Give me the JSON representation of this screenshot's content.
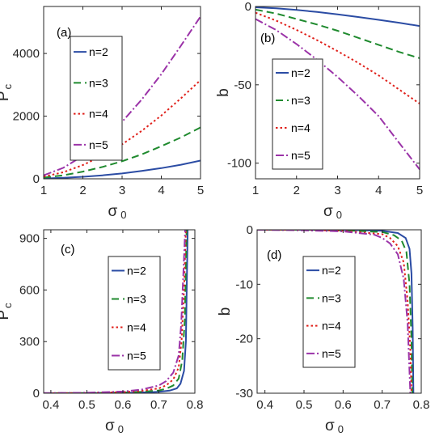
{
  "colors": {
    "n2": "#2b4ca4",
    "n3": "#1f8a2e",
    "n4": "#e0211b",
    "n5": "#9b33a8"
  },
  "chart_data": [
    {
      "panel": "(a)",
      "type": "line",
      "xlabel": "σ",
      "xlabel_sub": "0",
      "ylabel": "P",
      "ylabel_sub": "c",
      "xlim": [
        1,
        5
      ],
      "ylim": [
        0,
        5500
      ],
      "xticks": [
        "1",
        "2",
        "3",
        "4",
        "5"
      ],
      "yticks": [
        "0",
        "2000",
        "4000"
      ],
      "legend": "center-left",
      "series": [
        {
          "name": "n=2",
          "x": [
            1,
            1.5,
            2,
            2.5,
            3,
            3.5,
            4,
            4.5,
            5
          ],
          "values": [
            10,
            30,
            65,
            110,
            170,
            250,
            340,
            450,
            580
          ]
        },
        {
          "name": "n=3",
          "x": [
            1,
            1.5,
            2,
            2.5,
            3,
            3.5,
            4,
            4.5,
            5
          ],
          "values": [
            40,
            110,
            230,
            380,
            560,
            780,
            1040,
            1320,
            1640
          ]
        },
        {
          "name": "n=4",
          "x": [
            1,
            1.5,
            2,
            2.5,
            3,
            3.5,
            4,
            4.5,
            5
          ],
          "values": [
            70,
            210,
            440,
            740,
            1100,
            1530,
            2020,
            2570,
            3150
          ]
        },
        {
          "name": "n=5",
          "x": [
            1,
            1.5,
            2,
            2.5,
            3,
            3.5,
            4,
            4.5,
            5
          ],
          "values": [
            110,
            350,
            730,
            1220,
            1820,
            2530,
            3340,
            4250,
            5180
          ]
        }
      ]
    },
    {
      "panel": "(b)",
      "type": "line",
      "xlabel": "σ",
      "xlabel_sub": "0",
      "ylabel": "b",
      "xlim": [
        1,
        5
      ],
      "ylim": [
        -110,
        0
      ],
      "xticks": [
        "1",
        "2",
        "3",
        "4",
        "5"
      ],
      "yticks": [
        "0",
        "-50",
        "-100"
      ],
      "legend": "center-left",
      "series": [
        {
          "name": "n=2",
          "x": [
            1,
            1.5,
            2,
            2.5,
            3,
            3.5,
            4,
            4.5,
            5
          ],
          "values": [
            -0.5,
            -1.2,
            -2.2,
            -3.5,
            -5,
            -6.7,
            -8.5,
            -10.4,
            -12.5
          ]
        },
        {
          "name": "n=3",
          "x": [
            1,
            1.5,
            2,
            2.5,
            3,
            3.5,
            4,
            4.5,
            5
          ],
          "values": [
            -2,
            -4.5,
            -8,
            -11.5,
            -15.5,
            -20,
            -24.5,
            -29,
            -33
          ]
        },
        {
          "name": "n=4",
          "x": [
            1,
            1.5,
            2,
            2.5,
            3,
            3.5,
            4,
            4.5,
            5
          ],
          "values": [
            -4,
            -9,
            -15,
            -21.5,
            -28.5,
            -36,
            -44,
            -53,
            -62
          ]
        },
        {
          "name": "n=5",
          "x": [
            1,
            1.5,
            2,
            2.5,
            3,
            3.5,
            4,
            4.5,
            5
          ],
          "values": [
            -8,
            -15,
            -24,
            -34,
            -45,
            -57,
            -70,
            -87,
            -104
          ]
        }
      ]
    },
    {
      "panel": "(c)",
      "type": "line",
      "xlabel": "σ",
      "xlabel_sub": "0",
      "ylabel": "P",
      "ylabel_sub": "c",
      "xlim": [
        0.38,
        0.8
      ],
      "ylim": [
        0,
        950
      ],
      "xticks": [
        "0.4",
        "0.5",
        "0.6",
        "0.7",
        "0.8"
      ],
      "yticks": [
        "0",
        "300",
        "600",
        "900"
      ],
      "legend": "center",
      "series": [
        {
          "name": "n=2",
          "x": [
            0.38,
            0.5,
            0.6,
            0.65,
            0.7,
            0.73,
            0.75,
            0.76,
            0.77,
            0.775,
            0.78
          ],
          "values": [
            0,
            0.5,
            2,
            4,
            8,
            15,
            28,
            55,
            130,
            300,
            950
          ]
        },
        {
          "name": "n=3",
          "x": [
            0.38,
            0.5,
            0.6,
            0.65,
            0.7,
            0.72,
            0.74,
            0.755,
            0.765,
            0.772,
            0.777
          ],
          "values": [
            0,
            1,
            4,
            8,
            16,
            26,
            45,
            85,
            190,
            420,
            950
          ]
        },
        {
          "name": "n=4",
          "x": [
            0.38,
            0.5,
            0.6,
            0.65,
            0.7,
            0.72,
            0.74,
            0.755,
            0.763,
            0.77,
            0.775
          ],
          "values": [
            0,
            1.5,
            6,
            13,
            28,
            45,
            80,
            150,
            300,
            600,
            950
          ]
        },
        {
          "name": "n=5",
          "x": [
            0.38,
            0.5,
            0.6,
            0.65,
            0.7,
            0.72,
            0.74,
            0.755,
            0.762,
            0.768,
            0.773
          ],
          "values": [
            1,
            3,
            10,
            20,
            45,
            70,
            120,
            220,
            400,
            700,
            950
          ]
        }
      ]
    },
    {
      "panel": "(d)",
      "type": "line",
      "xlabel": "σ",
      "xlabel_sub": "0",
      "ylabel": "b",
      "xlim": [
        0.38,
        0.8
      ],
      "ylim": [
        -30,
        0
      ],
      "xticks": [
        "0.4",
        "0.5",
        "0.6",
        "0.7",
        "0.8"
      ],
      "yticks": [
        "0",
        "-10",
        "-20",
        "-30"
      ],
      "legend": "center",
      "series": [
        {
          "name": "n=2",
          "x": [
            0.38,
            0.5,
            0.6,
            0.7,
            0.74,
            0.76,
            0.77,
            0.775,
            0.778,
            0.78
          ],
          "values": [
            0,
            0,
            0,
            -0.2,
            -0.6,
            -1.5,
            -3.5,
            -8,
            -18,
            -30
          ]
        },
        {
          "name": "n=3",
          "x": [
            0.38,
            0.5,
            0.6,
            0.7,
            0.73,
            0.75,
            0.762,
            0.77,
            0.775,
            0.777
          ],
          "values": [
            0,
            0,
            -0.1,
            -0.4,
            -1,
            -2,
            -4,
            -10,
            -20,
            -30
          ]
        },
        {
          "name": "n=4",
          "x": [
            0.38,
            0.5,
            0.6,
            0.7,
            0.72,
            0.74,
            0.755,
            0.765,
            0.772,
            0.775
          ],
          "values": [
            0,
            0,
            -0.2,
            -0.8,
            -1.5,
            -3,
            -6,
            -13,
            -22,
            -30
          ]
        },
        {
          "name": "n=5",
          "x": [
            0.38,
            0.5,
            0.6,
            0.68,
            0.7,
            0.72,
            0.74,
            0.755,
            0.765,
            0.772
          ],
          "values": [
            0,
            -0.1,
            -0.3,
            -0.9,
            -1.5,
            -2.5,
            -4.5,
            -9,
            -17,
            -30
          ]
        }
      ]
    }
  ]
}
